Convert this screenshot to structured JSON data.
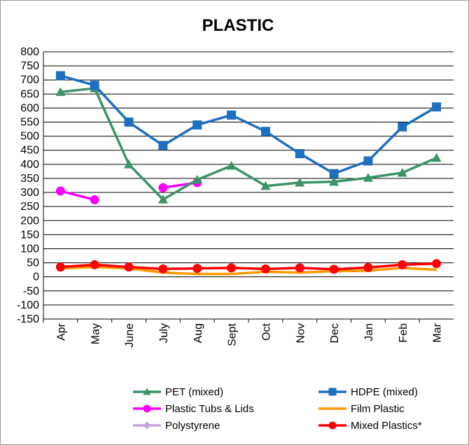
{
  "chart_data": {
    "type": "line",
    "title": "PLASTIC",
    "xlabel": "",
    "ylabel": "",
    "categories": [
      "Apr",
      "May",
      "June",
      "July",
      "Aug",
      "Sept",
      "Oct",
      "Nov",
      "Dec",
      "Jan",
      "Feb",
      "Mar"
    ],
    "ylim": [
      -150,
      800
    ],
    "yticks": [
      800,
      750,
      700,
      650,
      600,
      550,
      500,
      450,
      400,
      350,
      300,
      250,
      200,
      150,
      100,
      50,
      0,
      -50,
      -100,
      -150
    ],
    "grid": true,
    "legend_position": "bottom",
    "series": [
      {
        "name": "PET (mixed)",
        "color": "#3a9468",
        "marker": "triangle",
        "values": [
          657,
          670,
          400,
          275,
          345,
          395,
          323,
          335,
          338,
          352,
          370,
          423
        ]
      },
      {
        "name": "HDPE (mixed)",
        "color": "#1f6fc0",
        "marker": "square",
        "values": [
          715,
          681,
          550,
          467,
          540,
          575,
          517,
          438,
          367,
          412,
          533,
          604
        ]
      },
      {
        "name": "Plastic Tubs & Lids",
        "color": "#ff00ff",
        "marker": "circle",
        "values": [
          305,
          274,
          null,
          317,
          335,
          null,
          null,
          null,
          null,
          null,
          null,
          null
        ]
      },
      {
        "name": "Film Plastic",
        "color": "#ff9900",
        "marker": "none",
        "values": [
          30,
          35,
          30,
          15,
          10,
          10,
          18,
          15,
          20,
          22,
          32,
          25
        ]
      },
      {
        "name": "Polystyrene",
        "color": "#c9a0e0",
        "marker": "diamond",
        "values": [
          null,
          null,
          null,
          null,
          null,
          null,
          null,
          null,
          null,
          null,
          null,
          null
        ]
      },
      {
        "name": "Mixed Plastics*",
        "color": "#ff0000",
        "marker": "circle",
        "values": [
          35,
          43,
          35,
          28,
          30,
          32,
          28,
          32,
          27,
          33,
          43,
          47
        ]
      }
    ]
  }
}
